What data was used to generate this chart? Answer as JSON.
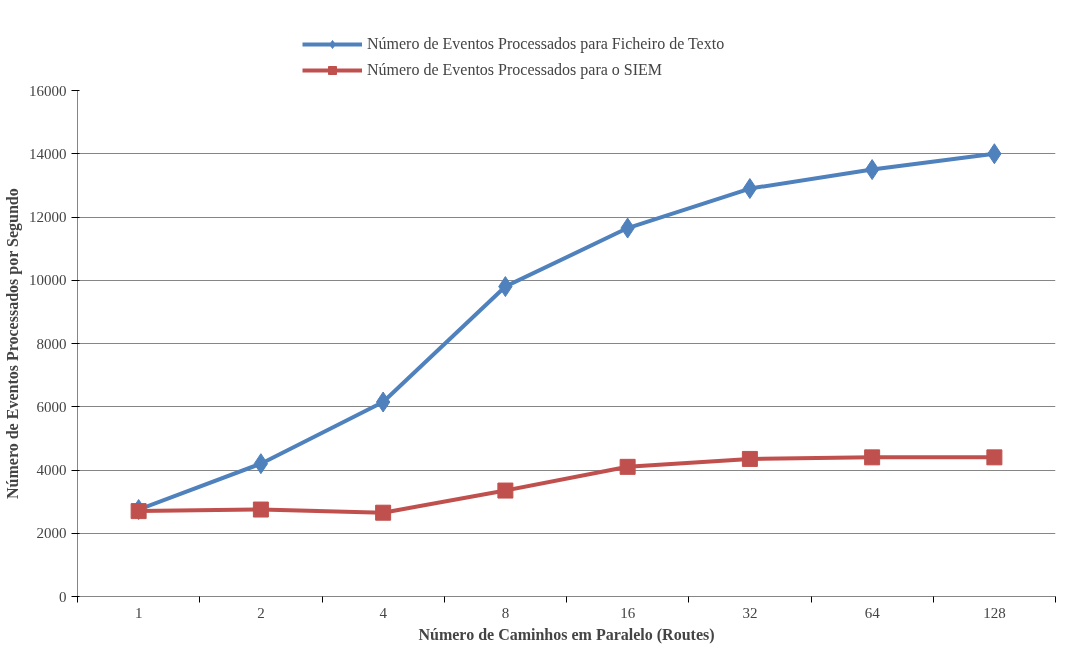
{
  "chart_data": {
    "type": "line",
    "xlabel": "Número de Caminhos em Paralelo (Routes)",
    "ylabel": "Número de Eventos Processados por Segundo",
    "categories": [
      "1",
      "2",
      "4",
      "8",
      "16",
      "32",
      "64",
      "128"
    ],
    "series": [
      {
        "name": "Número de Eventos Processados para Ficheiro de Texto",
        "color": "#4f81bd",
        "marker": "diamond",
        "values": [
          2750,
          4200,
          6150,
          9800,
          11650,
          12900,
          13500,
          14000
        ]
      },
      {
        "name": "Número de Eventos Processados para o SIEM",
        "color": "#c0504d",
        "marker": "square",
        "values": [
          2700,
          2750,
          2650,
          3350,
          4100,
          4350,
          4400,
          4400
        ]
      }
    ],
    "ylim": [
      0,
      16000
    ],
    "yticks": [
      0,
      2000,
      4000,
      6000,
      8000,
      10000,
      12000,
      14000,
      16000
    ],
    "grid": "y",
    "legend": "top",
    "line_style": "solid"
  }
}
